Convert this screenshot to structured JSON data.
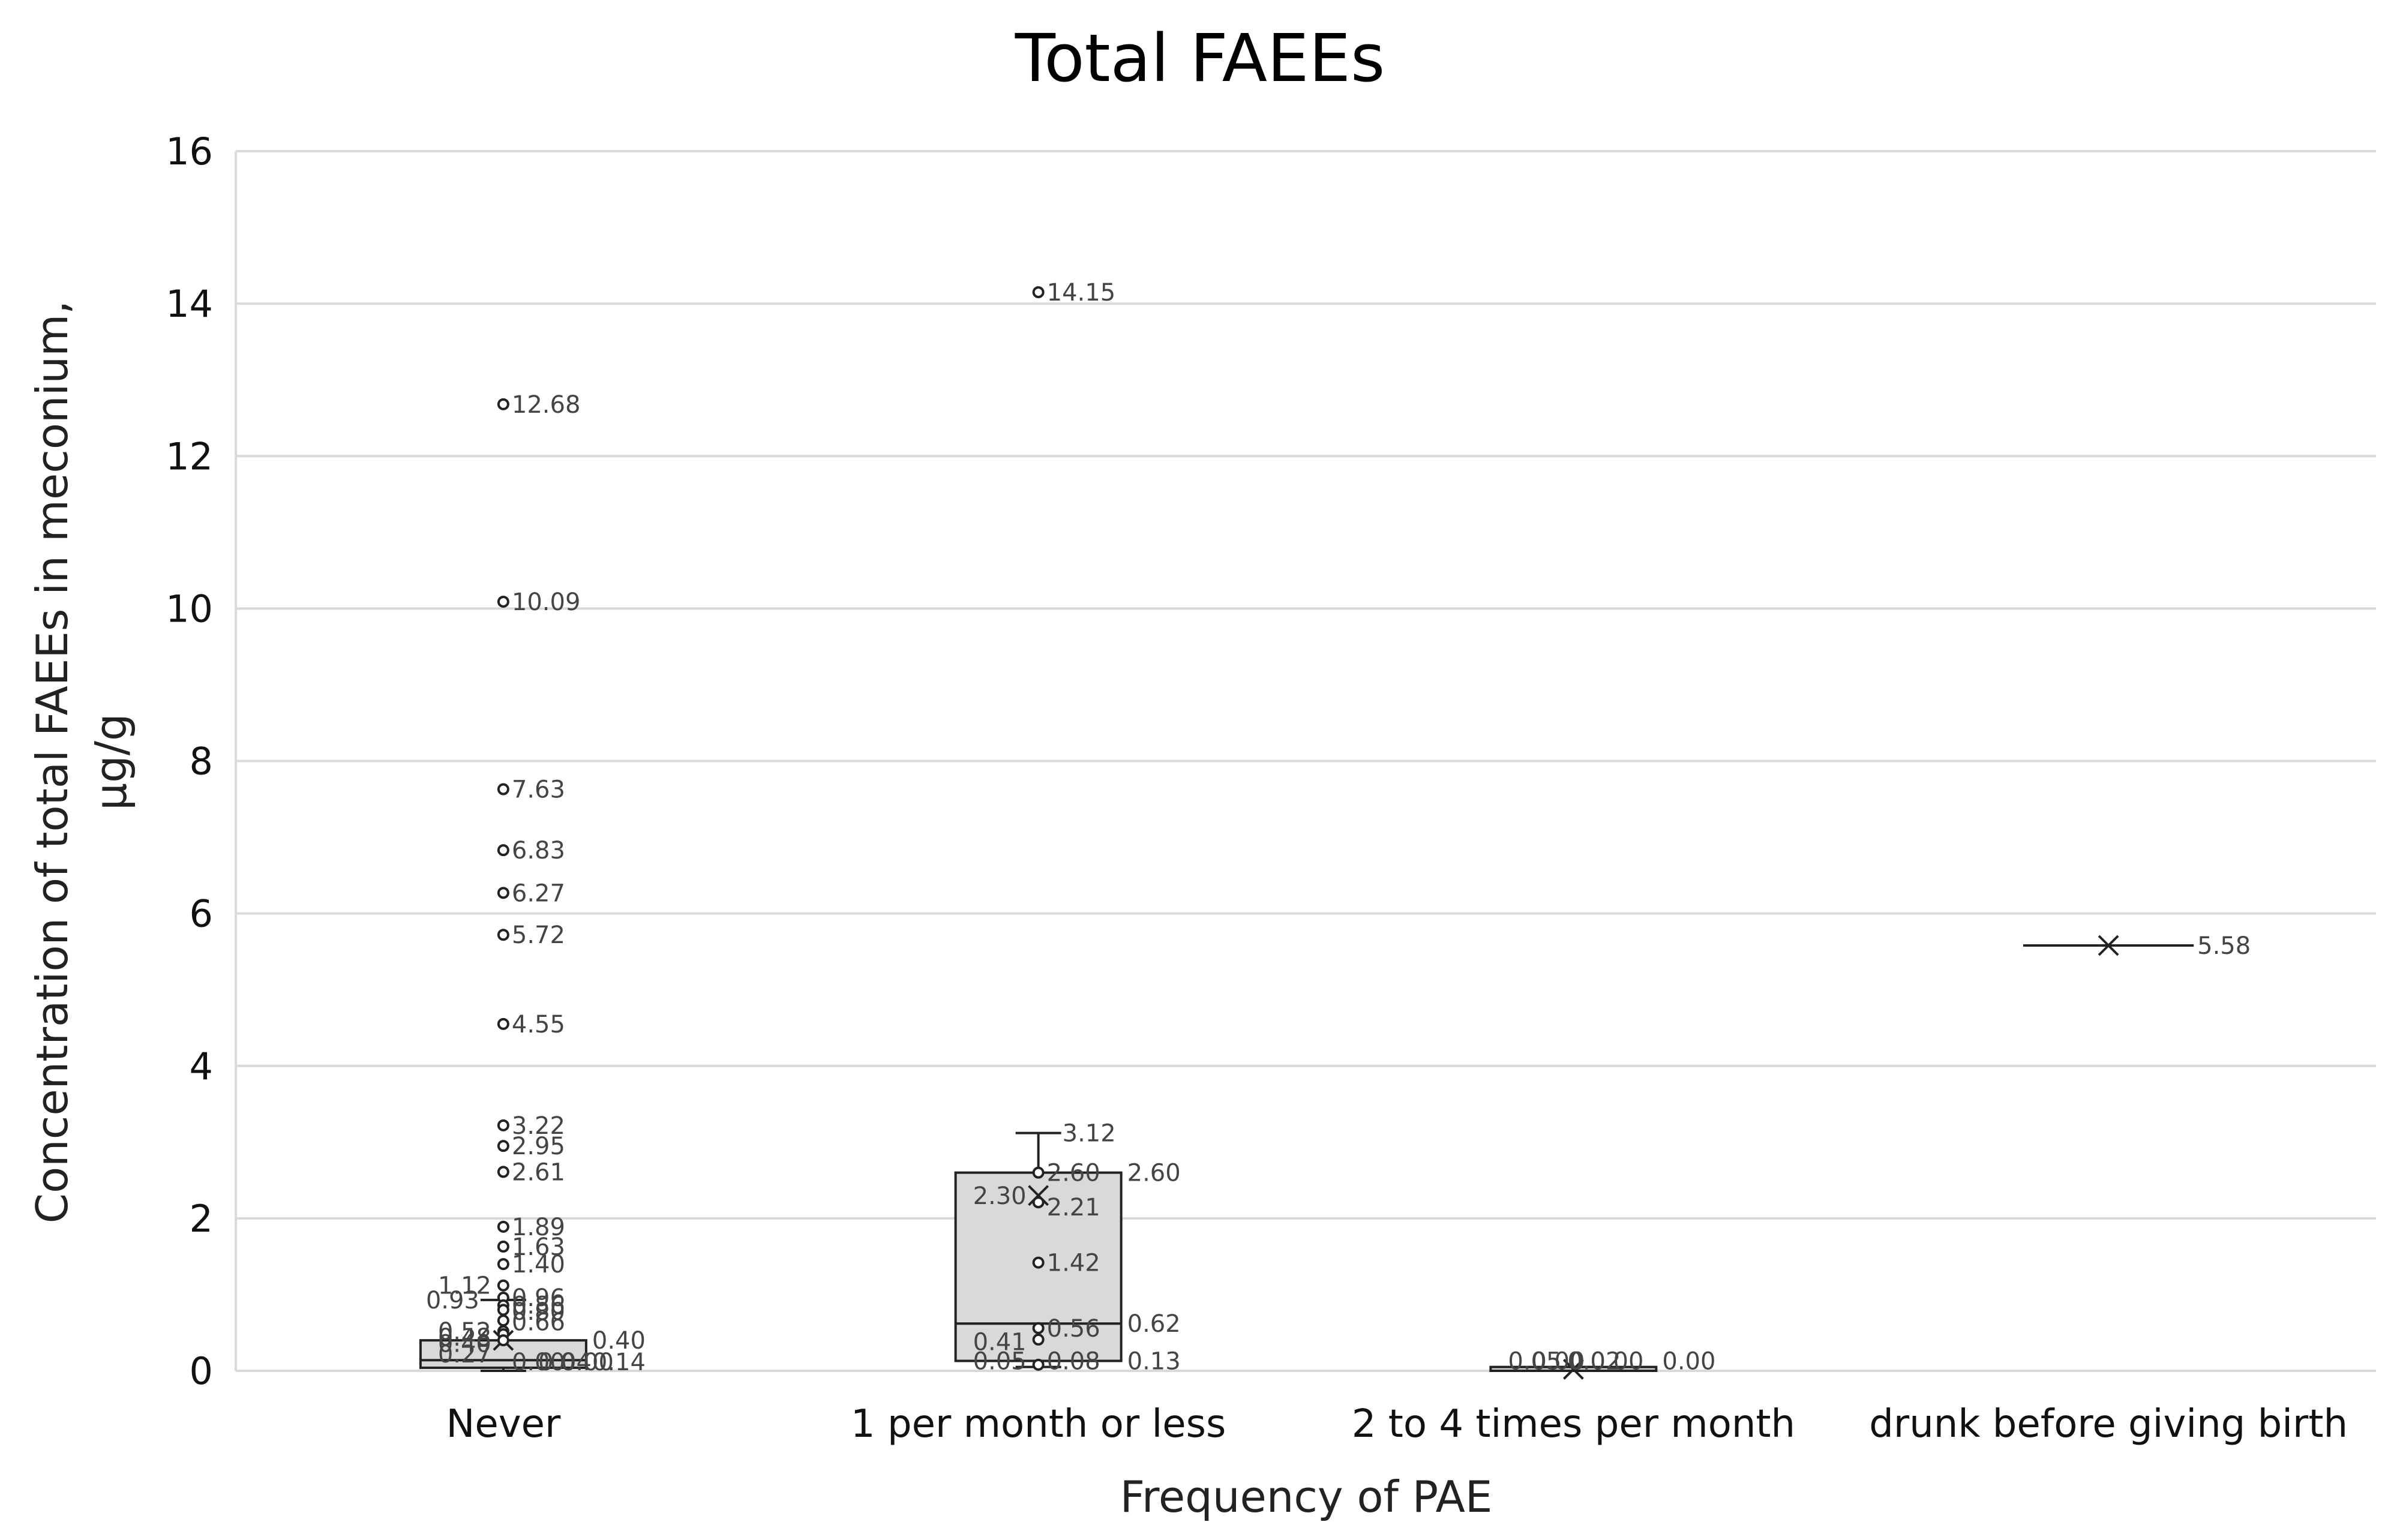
{
  "chart_data": {
    "type": "box",
    "title": "Total FAEEs",
    "xlabel": "Frequency of PAE",
    "ylabel": "Concentration of total FAEEs in meconium, μg/g",
    "ylim": [
      0,
      16
    ],
    "yticks": [
      0,
      2,
      4,
      6,
      8,
      10,
      12,
      14,
      16
    ],
    "grid": true,
    "categories": [
      "Never",
      "1 per month or less",
      "2 to 4 times per month",
      "drunk before giving birth"
    ],
    "boxes": [
      {
        "category": "Never",
        "whisker_low": 0.0,
        "q1": 0.04,
        "median": 0.14,
        "q3": 0.4,
        "whisker_high": 0.93,
        "mean": 0.4,
        "outliers": [
          12.68,
          10.09,
          7.63,
          6.83,
          6.27,
          5.72,
          4.55,
          3.22,
          2.95,
          2.61,
          1.89,
          1.63,
          1.4,
          1.12,
          0.96,
          0.86,
          0.8,
          0.66,
          0.52,
          0.48,
          0.4
        ],
        "labels": [
          {
            "text": "12.68",
            "y": 12.68,
            "side": "right"
          },
          {
            "text": "10.09",
            "y": 10.09,
            "side": "right"
          },
          {
            "text": "7.63",
            "y": 7.63,
            "side": "right"
          },
          {
            "text": "6.83",
            "y": 6.83,
            "side": "right"
          },
          {
            "text": "6.27",
            "y": 6.27,
            "side": "right"
          },
          {
            "text": "5.72",
            "y": 5.72,
            "side": "right"
          },
          {
            "text": "4.55",
            "y": 4.55,
            "side": "right"
          },
          {
            "text": "3.22",
            "y": 3.22,
            "side": "right"
          },
          {
            "text": "2.95",
            "y": 2.95,
            "side": "right"
          },
          {
            "text": "2.61",
            "y": 2.61,
            "side": "right"
          },
          {
            "text": "1.89",
            "y": 1.89,
            "side": "right"
          },
          {
            "text": "1.63",
            "y": 1.63,
            "side": "right"
          },
          {
            "text": "1.40",
            "y": 1.4,
            "side": "right"
          },
          {
            "text": "1.12",
            "y": 1.12,
            "side": "left"
          },
          {
            "text": "0.96",
            "y": 0.96,
            "side": "right"
          },
          {
            "text": "0.93",
            "y": 0.93,
            "side": "far-left"
          },
          {
            "text": "0.86",
            "y": 0.86,
            "side": "right"
          },
          {
            "text": "0.80",
            "y": 0.78,
            "side": "right"
          },
          {
            "text": "0.66",
            "y": 0.64,
            "side": "right"
          },
          {
            "text": "0.52",
            "y": 0.52,
            "side": "left"
          },
          {
            "text": "0.48",
            "y": 0.44,
            "side": "left"
          },
          {
            "text": "0.40",
            "y": 0.4,
            "side": "box-right"
          },
          {
            "text": "0.40",
            "y": 0.36,
            "side": "left"
          },
          {
            "text": "0.27",
            "y": 0.22,
            "side": "left"
          },
          {
            "text": "0.00",
            "y": 0.12,
            "side": "right"
          },
          {
            "text": "0.04",
            "y": 0.12,
            "side": "right2"
          },
          {
            "text": "0.00",
            "y": 0.12,
            "side": "right3"
          },
          {
            "text": "0.14",
            "y": 0.12,
            "side": "box-right"
          }
        ]
      },
      {
        "category": "1 per month or less",
        "whisker_low": 0.05,
        "q1": 0.13,
        "median": 0.62,
        "q3": 2.6,
        "whisker_high": 3.12,
        "mean": 2.3,
        "outliers": [
          14.15
        ],
        "points": [
          2.6,
          2.21,
          1.42,
          0.56,
          0.41,
          0.08
        ],
        "labels": [
          {
            "text": "14.15",
            "y": 14.15,
            "side": "right"
          },
          {
            "text": "3.12",
            "y": 3.12,
            "side": "box-right-near"
          },
          {
            "text": "2.60",
            "y": 2.6,
            "side": "right"
          },
          {
            "text": "2.60",
            "y": 2.6,
            "side": "box-right"
          },
          {
            "text": "2.30",
            "y": 2.3,
            "side": "left"
          },
          {
            "text": "2.21",
            "y": 2.15,
            "side": "right"
          },
          {
            "text": "1.42",
            "y": 1.42,
            "side": "right"
          },
          {
            "text": "0.62",
            "y": 0.62,
            "side": "box-right"
          },
          {
            "text": "0.56",
            "y": 0.56,
            "side": "right"
          },
          {
            "text": "0.41",
            "y": 0.38,
            "side": "left"
          },
          {
            "text": "0.13",
            "y": 0.13,
            "side": "box-right"
          },
          {
            "text": "0.08",
            "y": 0.13,
            "side": "right"
          },
          {
            "text": "0.05",
            "y": 0.13,
            "side": "left"
          }
        ]
      },
      {
        "category": "2 to 4 times per month",
        "whisker_low": 0.0,
        "q1": 0.0,
        "median": 0.0,
        "q3": 0.05,
        "whisker_high": 0.05,
        "mean": 0.02,
        "outliers": [],
        "labels": [
          {
            "text": "0.05",
            "y": 0.13,
            "side": "left"
          },
          {
            "text": "0.00",
            "y": 0.13,
            "side": "mid-left"
          },
          {
            "text": "0.02",
            "y": 0.13,
            "side": "mid"
          },
          {
            "text": "0.00",
            "y": 0.13,
            "side": "mid-right"
          },
          {
            "text": "0.00",
            "y": 0.13,
            "side": "box-right"
          }
        ]
      },
      {
        "category": "drunk before giving birth",
        "whisker_low": 5.58,
        "q1": 5.58,
        "median": 5.58,
        "q3": 5.58,
        "whisker_high": 5.58,
        "mean": 5.58,
        "outliers": [],
        "labels": [
          {
            "text": "5.58",
            "y": 5.58,
            "side": "box-right"
          }
        ]
      }
    ]
  }
}
